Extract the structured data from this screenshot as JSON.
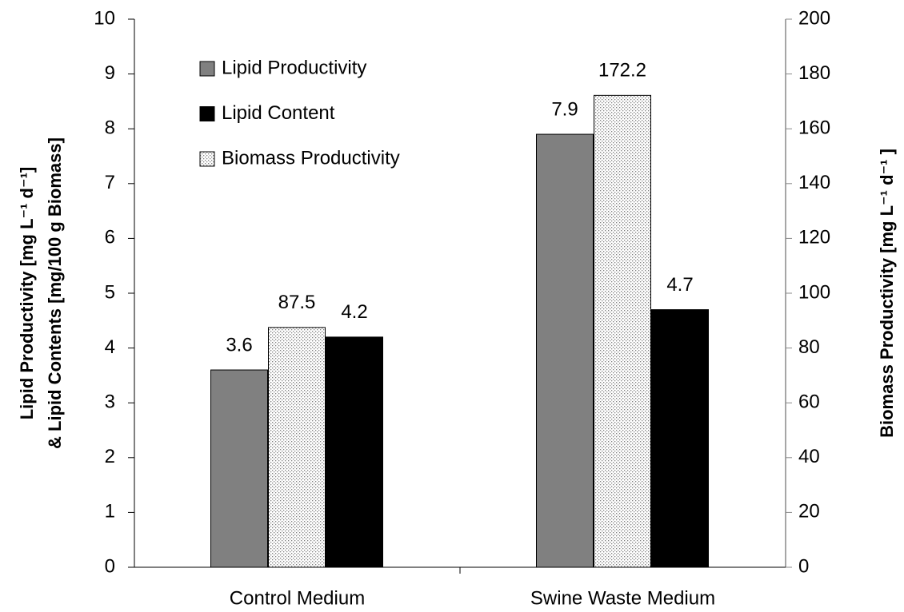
{
  "chart_data": {
    "type": "bar",
    "categories": [
      "Control Medium",
      "Swine Waste Medium"
    ],
    "series": [
      {
        "name": "Lipid Productivity",
        "color": "#808080",
        "values": [
          3.6,
          7.9
        ]
      },
      {
        "name": "Lipid Content",
        "color": "#000000",
        "values": [
          4.2,
          4.7
        ]
      },
      {
        "name": "Biomass Productivity",
        "color": "#808080",
        "pattern": "dots",
        "axis": "y2",
        "values": [
          87.5,
          172.2
        ]
      }
    ],
    "ylabel": [
      "Lipid Productivity [mg L⁻¹ d⁻¹]",
      "& Lipid Contents [mg/100 g Biomass]"
    ],
    "y2label": "Biomass Productivity [mg L⁻¹ d⁻¹ ]",
    "ylim": [
      0,
      10
    ],
    "yticks": [
      0,
      1,
      2,
      3,
      4,
      5,
      6,
      7,
      8,
      9,
      10
    ],
    "y2lim": [
      0,
      200
    ],
    "y2ticks": [
      0,
      20,
      40,
      60,
      80,
      100,
      120,
      140,
      160,
      180,
      200
    ],
    "legend": "upper left"
  }
}
